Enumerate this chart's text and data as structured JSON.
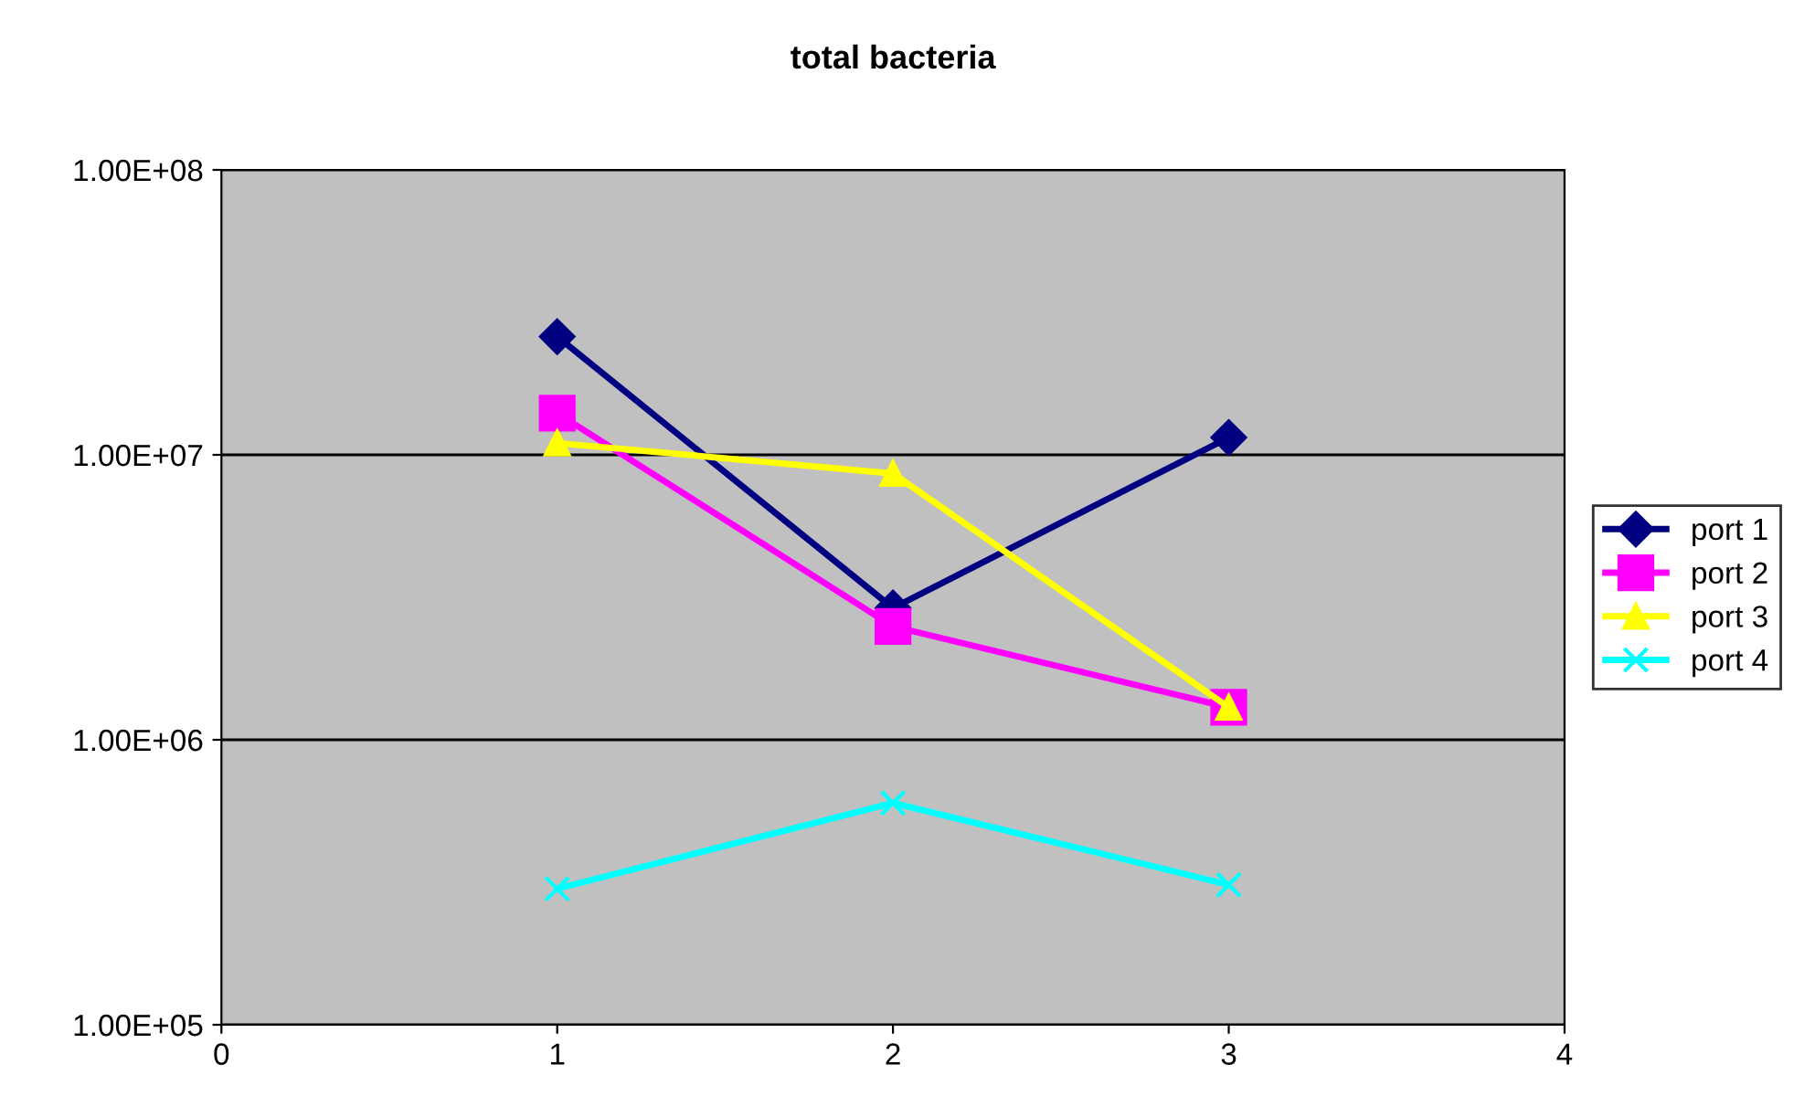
{
  "chart_data": {
    "type": "line",
    "title": "total bacteria",
    "log": "y",
    "grid": "y",
    "legend": "right",
    "x": [
      1,
      2,
      3
    ],
    "xlim": [
      0,
      4
    ],
    "xticks": [
      0,
      1,
      2,
      3,
      4
    ],
    "ylim": [
      100000,
      100000000
    ],
    "yticks": [
      {
        "value": 100000,
        "label": "1.00E+05"
      },
      {
        "value": 1000000,
        "label": "1.00E+06"
      },
      {
        "value": 10000000,
        "label": "1.00E+07"
      },
      {
        "value": 100000000,
        "label": "1.00E+08"
      }
    ],
    "series": [
      {
        "name": "port 1",
        "color": "#000080",
        "marker": "diamond",
        "values": [
          26000000,
          2900000,
          11500000
        ]
      },
      {
        "name": "port 2",
        "color": "#ff00ff",
        "marker": "square",
        "values": [
          14000000,
          2500000,
          1300000
        ]
      },
      {
        "name": "port 3",
        "color": "#ffff00",
        "marker": "triangle",
        "values": [
          11000000,
          8600000,
          1300000
        ]
      },
      {
        "name": "port 4",
        "color": "#00ffff",
        "marker": "cross",
        "values": [
          300000,
          600000,
          310000
        ]
      }
    ]
  }
}
